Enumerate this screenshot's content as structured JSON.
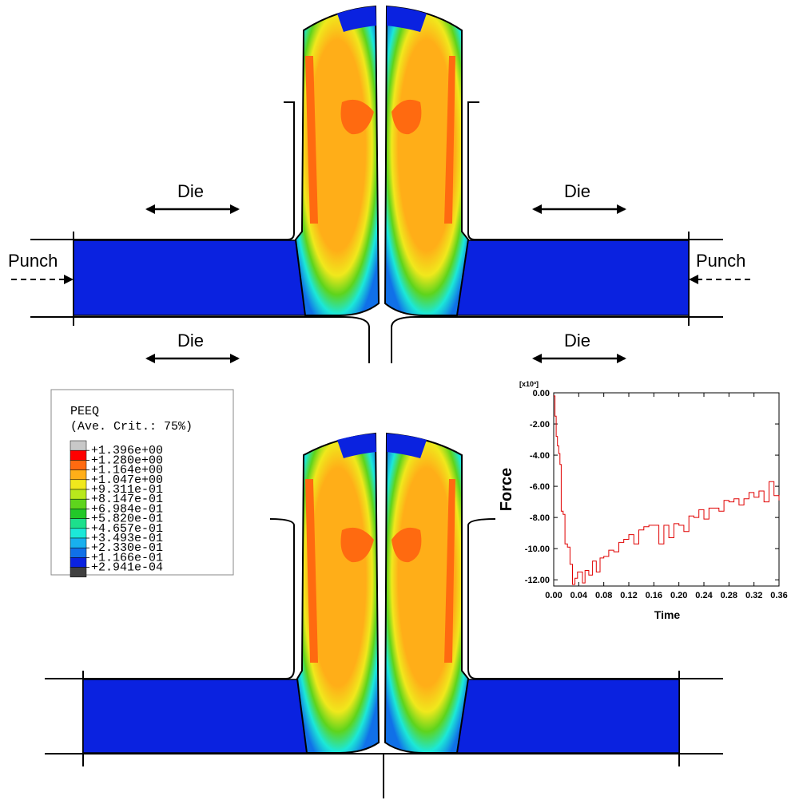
{
  "labels": {
    "die": "Die",
    "punch": "Punch"
  },
  "legend": {
    "title": "PEEQ",
    "subtitle": "(Ave. Crit.: 75%)",
    "values": [
      "+1.396e+00",
      "+1.280e+00",
      "+1.164e+00",
      "+1.047e+00",
      "+9.311e-01",
      "+8.147e-01",
      "+6.984e-01",
      "+5.820e-01",
      "+4.657e-01",
      "+3.493e-01",
      "+2.330e-01",
      "+1.166e-01",
      "+2.941e-04"
    ],
    "colors": [
      "#c8c8c8",
      "#ff0000",
      "#ff6a10",
      "#ffae18",
      "#f0e81c",
      "#b8e81c",
      "#5ed41c",
      "#22c828",
      "#1ce08c",
      "#1ce8d8",
      "#18b0ee",
      "#1070e8",
      "#0a22e0",
      "#404040"
    ]
  },
  "colors": {
    "blank": "#0a22e0",
    "outline": "#000000",
    "curve": "#e00000"
  },
  "chart_data": {
    "type": "line",
    "title": "",
    "xlabel": "Time",
    "ylabel": "Force",
    "multiplier": "[x10³]",
    "xlim": [
      0,
      0.36
    ],
    "ylim": [
      -12.4,
      0
    ],
    "xticks": [
      "0.00",
      "0.04",
      "0.08",
      "0.12",
      "0.16",
      "0.20",
      "0.24",
      "0.28",
      "0.32",
      "0.36"
    ],
    "yticks": [
      "0.00",
      "-2.00",
      "-4.00",
      "-6.00",
      "-8.00",
      "-10.00",
      "-12.00"
    ],
    "series": [
      {
        "x": [
          0,
          0.002,
          0.004,
          0.006,
          0.008,
          0.01,
          0.012,
          0.015,
          0.018,
          0.022,
          0.026,
          0.03,
          0.034,
          0.038,
          0.042,
          0.046,
          0.05,
          0.056,
          0.062,
          0.068,
          0.074,
          0.08,
          0.088,
          0.096,
          0.104,
          0.112,
          0.12,
          0.128,
          0.136,
          0.144,
          0.152,
          0.16,
          0.168,
          0.176,
          0.184,
          0.192,
          0.2,
          0.208,
          0.216,
          0.224,
          0.232,
          0.24,
          0.248,
          0.256,
          0.264,
          0.272,
          0.28,
          0.288,
          0.296,
          0.304,
          0.312,
          0.32,
          0.328,
          0.336,
          0.344,
          0.352,
          0.36
        ],
        "y": [
          -0.2,
          -1.5,
          -2.8,
          -3.4,
          -3.9,
          -4.6,
          -7.6,
          -7.8,
          -9.7,
          -9.9,
          -11.0,
          -12.3,
          -11.9,
          -11.5,
          -11.5,
          -12.2,
          -11.4,
          -11.7,
          -10.8,
          -11.5,
          -10.6,
          -10.5,
          -10.1,
          -10.2,
          -9.6,
          -9.4,
          -9.1,
          -9.7,
          -8.8,
          -8.6,
          -8.5,
          -8.5,
          -9.7,
          -8.5,
          -9.3,
          -8.4,
          -8.5,
          -8.9,
          -7.9,
          -8.0,
          -7.5,
          -8.1,
          -7.4,
          -7.4,
          -7.6,
          -6.9,
          -7.0,
          -6.8,
          -7.2,
          -6.8,
          -6.4,
          -6.7,
          -6.3,
          -7.0,
          -5.7,
          -6.6,
          -6.9
        ]
      }
    ]
  }
}
